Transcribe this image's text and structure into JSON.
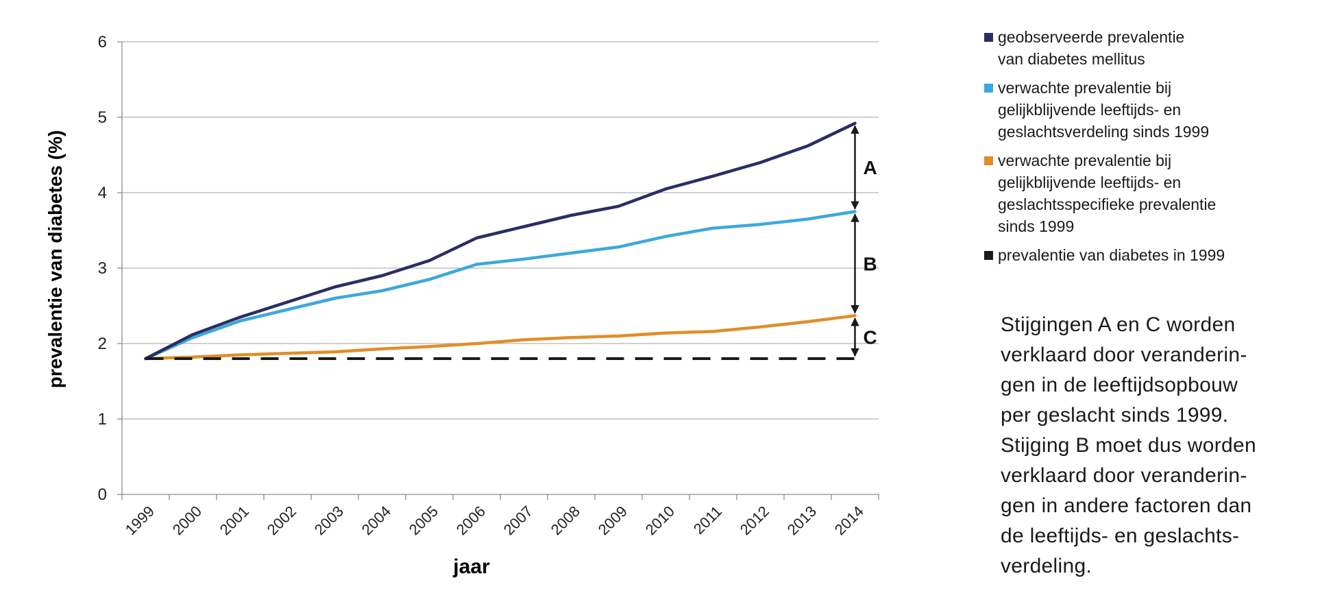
{
  "chart_data": {
    "type": "line",
    "categories": [
      "1999",
      "2000",
      "2001",
      "2002",
      "2003",
      "2004",
      "2005",
      "2006",
      "2007",
      "2008",
      "2009",
      "2010",
      "2011",
      "2012",
      "2013",
      "2014"
    ],
    "ylabel": "prevalentie van diabetes (%)",
    "xlabel": "jaar",
    "ylim": [
      0,
      6
    ],
    "yticks": [
      "0",
      "1",
      "2",
      "3",
      "4",
      "5",
      "6"
    ],
    "grid": true,
    "legend_position": "right",
    "series": [
      {
        "name": "geobserveerde prevalentie\nvan diabetes mellitus",
        "color": "#2b2d64",
        "dash": false,
        "values": [
          1.8,
          2.12,
          2.35,
          2.55,
          2.75,
          2.9,
          3.1,
          3.4,
          3.55,
          3.7,
          3.82,
          4.05,
          4.22,
          4.4,
          4.62,
          4.92
        ]
      },
      {
        "name": "verwachte prevalentie bij\ngelijkblijvende leeftijds- en\ngeslachtsverdeling sinds 1999",
        "color": "#3ba8dc",
        "dash": false,
        "values": [
          1.8,
          2.08,
          2.3,
          2.45,
          2.6,
          2.7,
          2.85,
          3.05,
          3.12,
          3.2,
          3.28,
          3.42,
          3.53,
          3.58,
          3.65,
          3.75
        ]
      },
      {
        "name": "verwachte prevalentie bij\ngelijkblijvende leeftijds- en\ngeslachtsspecifieke prevalentie\nsinds 1999",
        "color": "#e08e2a",
        "dash": false,
        "values": [
          1.8,
          1.82,
          1.85,
          1.87,
          1.89,
          1.93,
          1.96,
          2.0,
          2.05,
          2.08,
          2.1,
          2.14,
          2.16,
          2.22,
          2.29,
          2.37
        ]
      },
      {
        "name": "prevalentie van diabetes in 1999",
        "color": "#1a1a1a",
        "dash": true,
        "values": [
          1.8,
          1.8,
          1.8,
          1.8,
          1.8,
          1.8,
          1.8,
          1.8,
          1.8,
          1.8,
          1.8,
          1.8,
          1.8,
          1.8,
          1.8,
          1.8
        ]
      }
    ],
    "annotations": [
      {
        "label": "A",
        "from": 3.75,
        "to": 4.92
      },
      {
        "label": "B",
        "from": 2.37,
        "to": 3.75
      },
      {
        "label": "C",
        "from": 1.8,
        "to": 2.37
      }
    ]
  },
  "note": "Stijgingen A en C worden\nverklaard door veranderin-\ngen in de leeftijdsopbouw\nper geslacht sinds 1999.\nStijging B moet dus worden\nverklaard door veranderin-\ngen in andere factoren dan\nde leeftijds- en geslachts-\nverdeling."
}
